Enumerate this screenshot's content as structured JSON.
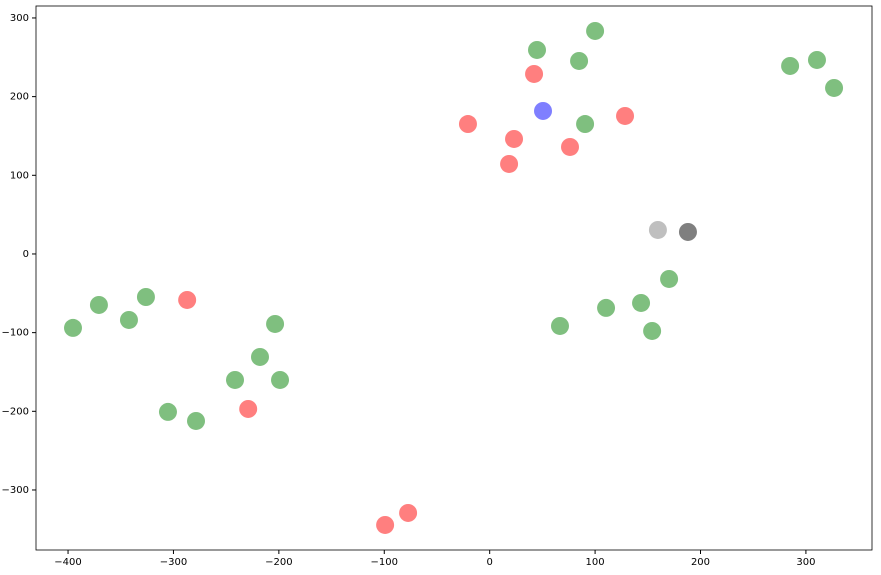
{
  "chart_data": {
    "type": "scatter",
    "xlim": [
      -430.4,
      362.7
    ],
    "ylim": [
      -376.3,
      315.2
    ],
    "xticks": [
      {
        "value": -400,
        "label": "−400"
      },
      {
        "value": -300,
        "label": "−300"
      },
      {
        "value": -200,
        "label": "−200"
      },
      {
        "value": -100,
        "label": "−100"
      },
      0,
      100,
      200,
      300
    ],
    "yticks": [
      {
        "value": -300,
        "label": "−300"
      },
      {
        "value": -200,
        "label": "−200"
      },
      {
        "value": -100,
        "label": "−100"
      },
      0,
      100,
      200,
      300
    ],
    "grid": false,
    "alpha": 0.5,
    "series": [
      {
        "color": "#008000",
        "x": [
          -395.3,
          -370.7,
          -342.2,
          -326.1,
          -305.2,
          -278.6,
          -241.6,
          -217.9,
          -203.6,
          -198.9,
          44.9,
          100,
          84.8,
          90.5,
          285,
          310.5,
          326.7,
          66.7,
          110.4,
          143.6,
          154.1,
          170.2
        ],
        "values": [
          -94,
          -64.8,
          -83.9,
          -54.7,
          -200.8,
          -212.3,
          -160.2,
          -130.9,
          -89,
          -160.2,
          259.3,
          283.5,
          245.3,
          165.2,
          239,
          246.6,
          211,
          -91.5,
          -68.6,
          -62.3,
          -97.9,
          -31.8
        ]
      },
      {
        "color": "#ff0000",
        "x": [
          -287,
          -229.1,
          -99.2,
          -77.4,
          -20.6,
          23.1,
          18.4,
          42.1,
          76.2,
          128.4
        ],
        "values": [
          -58.5,
          -197,
          -344.5,
          -329.2,
          165.2,
          146.2,
          114.4,
          228.8,
          136,
          175.4
        ]
      },
      {
        "color": "#0000ff",
        "x": [
          50.6
        ],
        "values": [
          181.8
        ]
      },
      {
        "color": "#808080",
        "x": [
          159.6
        ],
        "values": [
          30.5
        ]
      },
      {
        "color": "#000000",
        "x": [
          188.1
        ],
        "values": [
          28
        ]
      }
    ]
  }
}
